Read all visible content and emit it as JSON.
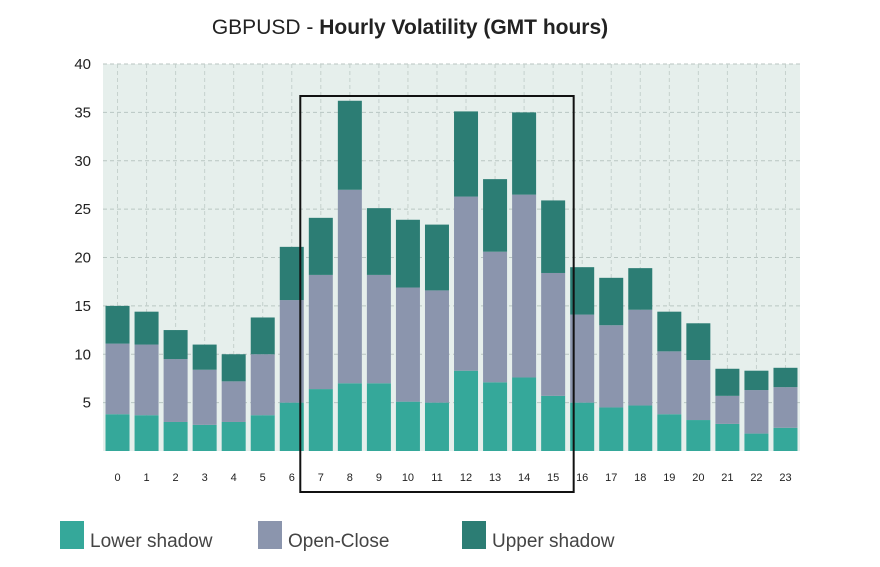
{
  "title": {
    "prefix": "GBPUSD - ",
    "main": "Hourly Volatility (GMT hours)"
  },
  "colors": {
    "lower_shadow": "#35a89a",
    "open_close": "#8b95ad",
    "upper_shadow": "#2c7d74",
    "plot_bg": "#e6efec",
    "highlight_box": "#111111"
  },
  "chart_data": {
    "type": "bar",
    "stacked": true,
    "title": "GBPUSD - Hourly Volatility (GMT hours)",
    "categories": [
      "0",
      "1",
      "2",
      "3",
      "4",
      "5",
      "6",
      "7",
      "8",
      "9",
      "10",
      "11",
      "12",
      "13",
      "14",
      "15",
      "16",
      "17",
      "18",
      "19",
      "20",
      "21",
      "22",
      "23"
    ],
    "series": [
      {
        "name": "Lower shadow",
        "values": [
          3.8,
          3.7,
          3.0,
          2.7,
          3.0,
          3.7,
          5.0,
          6.4,
          7.0,
          7.0,
          5.1,
          5.0,
          8.3,
          7.1,
          7.6,
          5.7,
          5.0,
          4.5,
          4.7,
          3.8,
          3.2,
          2.8,
          1.8,
          2.4
        ]
      },
      {
        "name": "Open-Close",
        "values": [
          7.3,
          7.3,
          6.5,
          5.7,
          4.2,
          6.3,
          10.6,
          11.8,
          20.0,
          11.2,
          11.8,
          11.6,
          18.0,
          13.5,
          18.9,
          12.7,
          9.1,
          8.5,
          9.9,
          6.5,
          6.2,
          2.9,
          4.5,
          4.2
        ]
      },
      {
        "name": "Upper shadow",
        "values": [
          3.9,
          3.4,
          3.0,
          2.6,
          2.8,
          3.8,
          5.5,
          5.9,
          9.2,
          6.9,
          7.0,
          6.8,
          8.8,
          7.5,
          8.5,
          7.5,
          4.9,
          4.9,
          4.3,
          4.1,
          3.8,
          2.8,
          2.0,
          2.0
        ]
      }
    ],
    "ylim": [
      0,
      40
    ],
    "yticks": [
      5,
      10,
      15,
      20,
      25,
      30,
      35,
      40
    ],
    "grid": true,
    "legend": "bottom",
    "highlight_range": [
      "7",
      "15"
    ]
  }
}
